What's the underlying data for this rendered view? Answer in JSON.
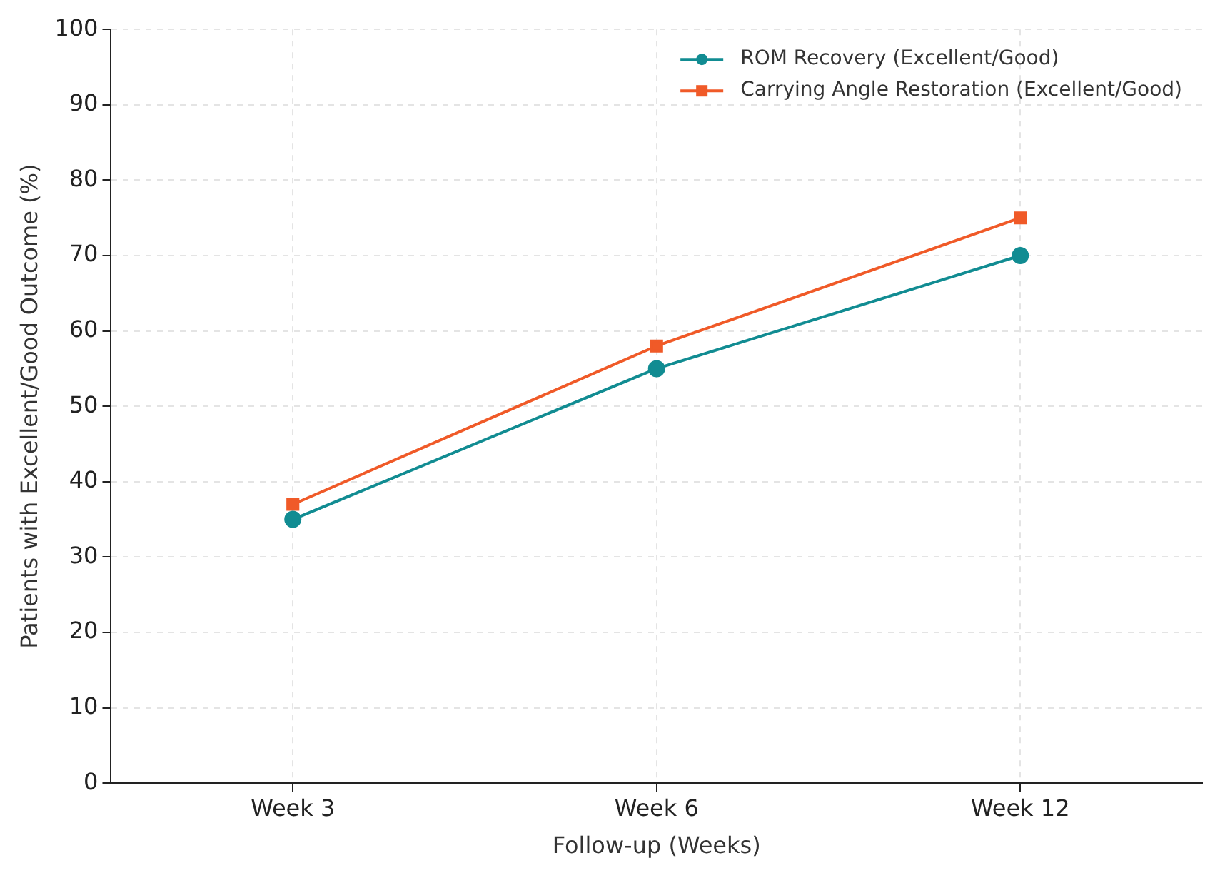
{
  "chart_data": {
    "type": "line",
    "xlabel": "Follow-up (Weeks)",
    "ylabel": "Patients with Excellent/Good Outcome (%)",
    "categories": [
      "Week 3",
      "Week 6",
      "Week 12"
    ],
    "ylim": [
      0,
      100
    ],
    "yticks": [
      0,
      10,
      20,
      30,
      40,
      50,
      60,
      70,
      80,
      90,
      100
    ],
    "grid": true,
    "legend": "top right",
    "line_style": "solid",
    "series": [
      {
        "name": "ROM Recovery (Excellent/Good)",
        "color": "#118c92",
        "values": [
          35,
          55,
          70
        ],
        "marker": "circle"
      },
      {
        "name": "Carrying Angle Restoration (Excellent/Good)",
        "color": "#f05a28",
        "values": [
          37,
          58,
          75
        ],
        "marker": "square"
      }
    ]
  }
}
